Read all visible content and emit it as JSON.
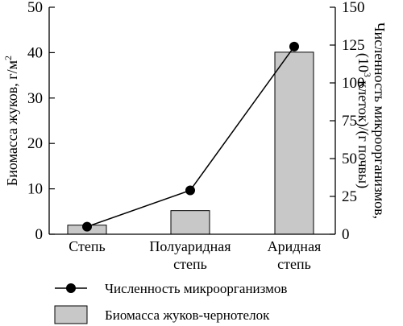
{
  "chart_data": {
    "type": "bar",
    "categories": [
      [
        "Степь"
      ],
      [
        "Полуаридная",
        "степь"
      ],
      [
        "Аридная",
        "степь"
      ]
    ],
    "left_axis": {
      "label_prefix": "Биомасса жуков, г/м",
      "label_sup": "2",
      "ylim": [
        0,
        50
      ],
      "ticks": [
        0,
        10,
        20,
        30,
        40,
        50
      ]
    },
    "right_axis": {
      "label_line1": "Численность микроорганизмов,",
      "label_line2_open": "(10",
      "label_line2_sup": "3",
      "label_line2_rest": " клеток)/(г почвы)",
      "ylim": [
        0,
        150
      ],
      "ticks": [
        0,
        25,
        50,
        75,
        100,
        125,
        150
      ]
    },
    "series": [
      {
        "name": "Биомасса жуков-чернотелок",
        "kind": "bar",
        "axis": "left",
        "color": "#c8c8c8",
        "values": [
          2,
          5.2,
          40.1
        ]
      },
      {
        "name": "Численность микроорганизмов",
        "kind": "line",
        "axis": "right",
        "color": "#000000",
        "values": [
          5,
          29,
          124
        ]
      }
    ],
    "legend": {
      "placement": "bottom",
      "items": [
        "Численность микроорганизмов",
        "Биомасса жуков-чернотелок"
      ]
    }
  }
}
